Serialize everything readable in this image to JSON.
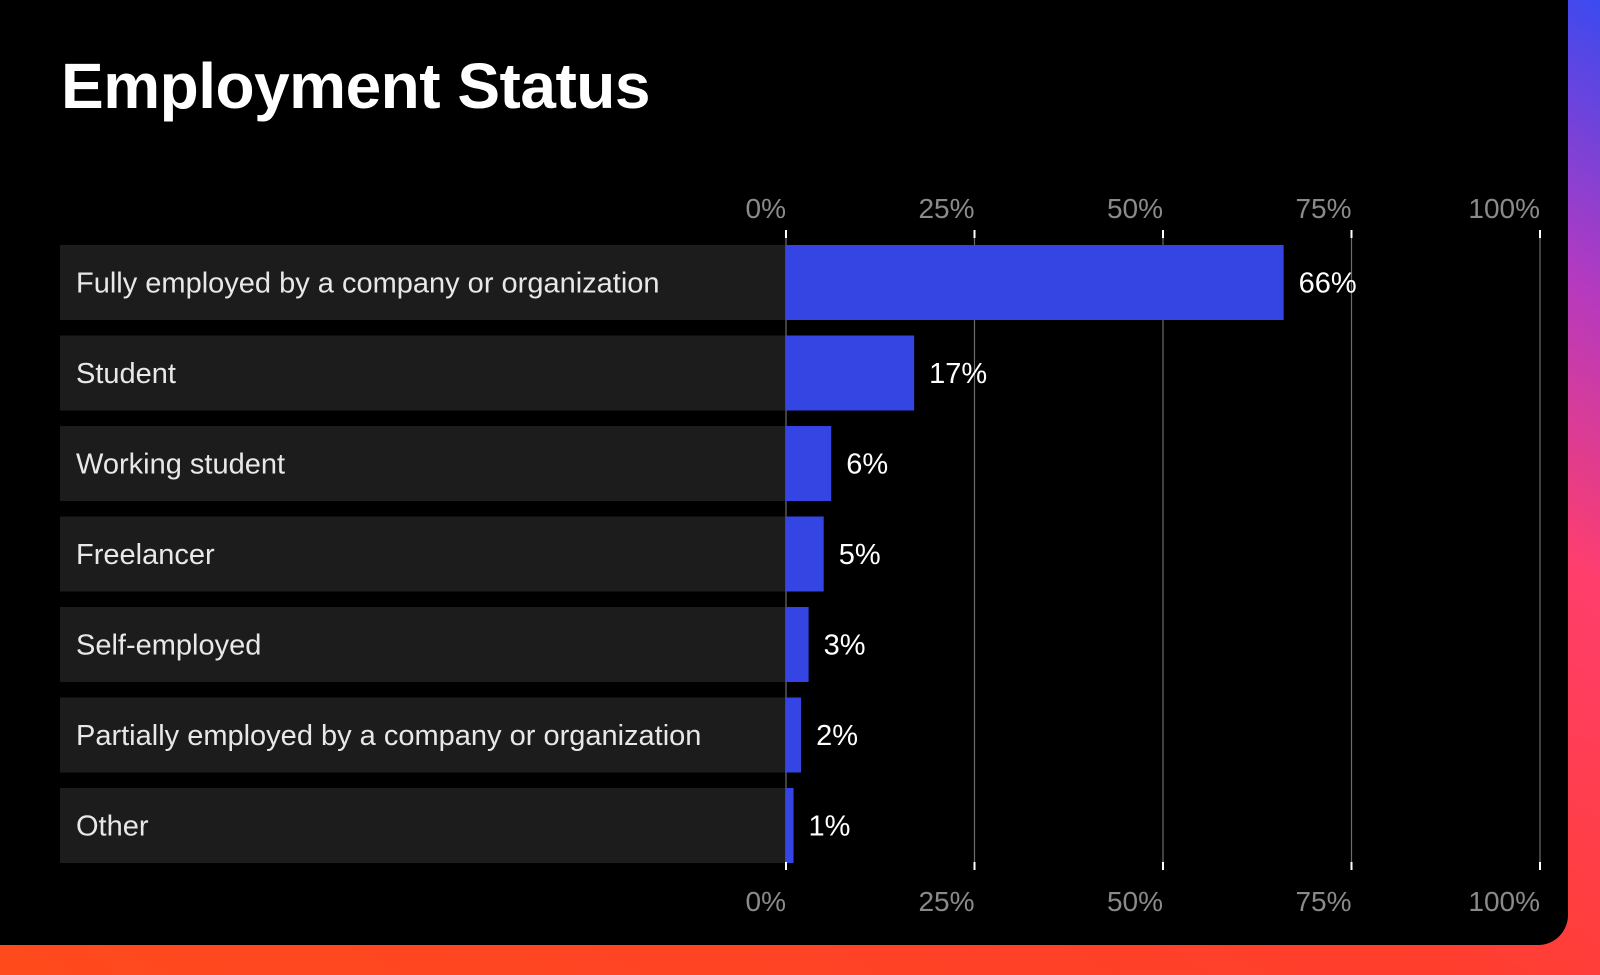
{
  "colors": {
    "background": "#000000",
    "bar": "#3545e3",
    "row_background": "#1c1c1c",
    "grid": "#6b6b6b",
    "tick_label": "#8a8a8a",
    "frame_gradient": [
      "#ff4a1c",
      "#ff3e5c",
      "#e93a8d",
      "#9a3ad0",
      "#3b4af0"
    ]
  },
  "chart_data": {
    "type": "bar",
    "orientation": "horizontal",
    "title": "Employment Status",
    "categories": [
      "Fully employed by a company or organization",
      "Student",
      "Working student",
      "Freelancer",
      "Self-employed",
      "Partially employed by a company or organization",
      "Other"
    ],
    "values": [
      66,
      17,
      6,
      5,
      3,
      2,
      1
    ],
    "value_labels": [
      "66%",
      "17%",
      "6%",
      "5%",
      "3%",
      "2%",
      "1%"
    ],
    "xlim": [
      0,
      100
    ],
    "xticks": [
      0,
      25,
      50,
      75,
      100
    ],
    "xtick_labels": [
      "0%",
      "25%",
      "50%",
      "75%",
      "100%"
    ],
    "tick_labels_top": true,
    "tick_labels_bottom": true,
    "grid": true,
    "xlabel": "",
    "ylabel": ""
  }
}
